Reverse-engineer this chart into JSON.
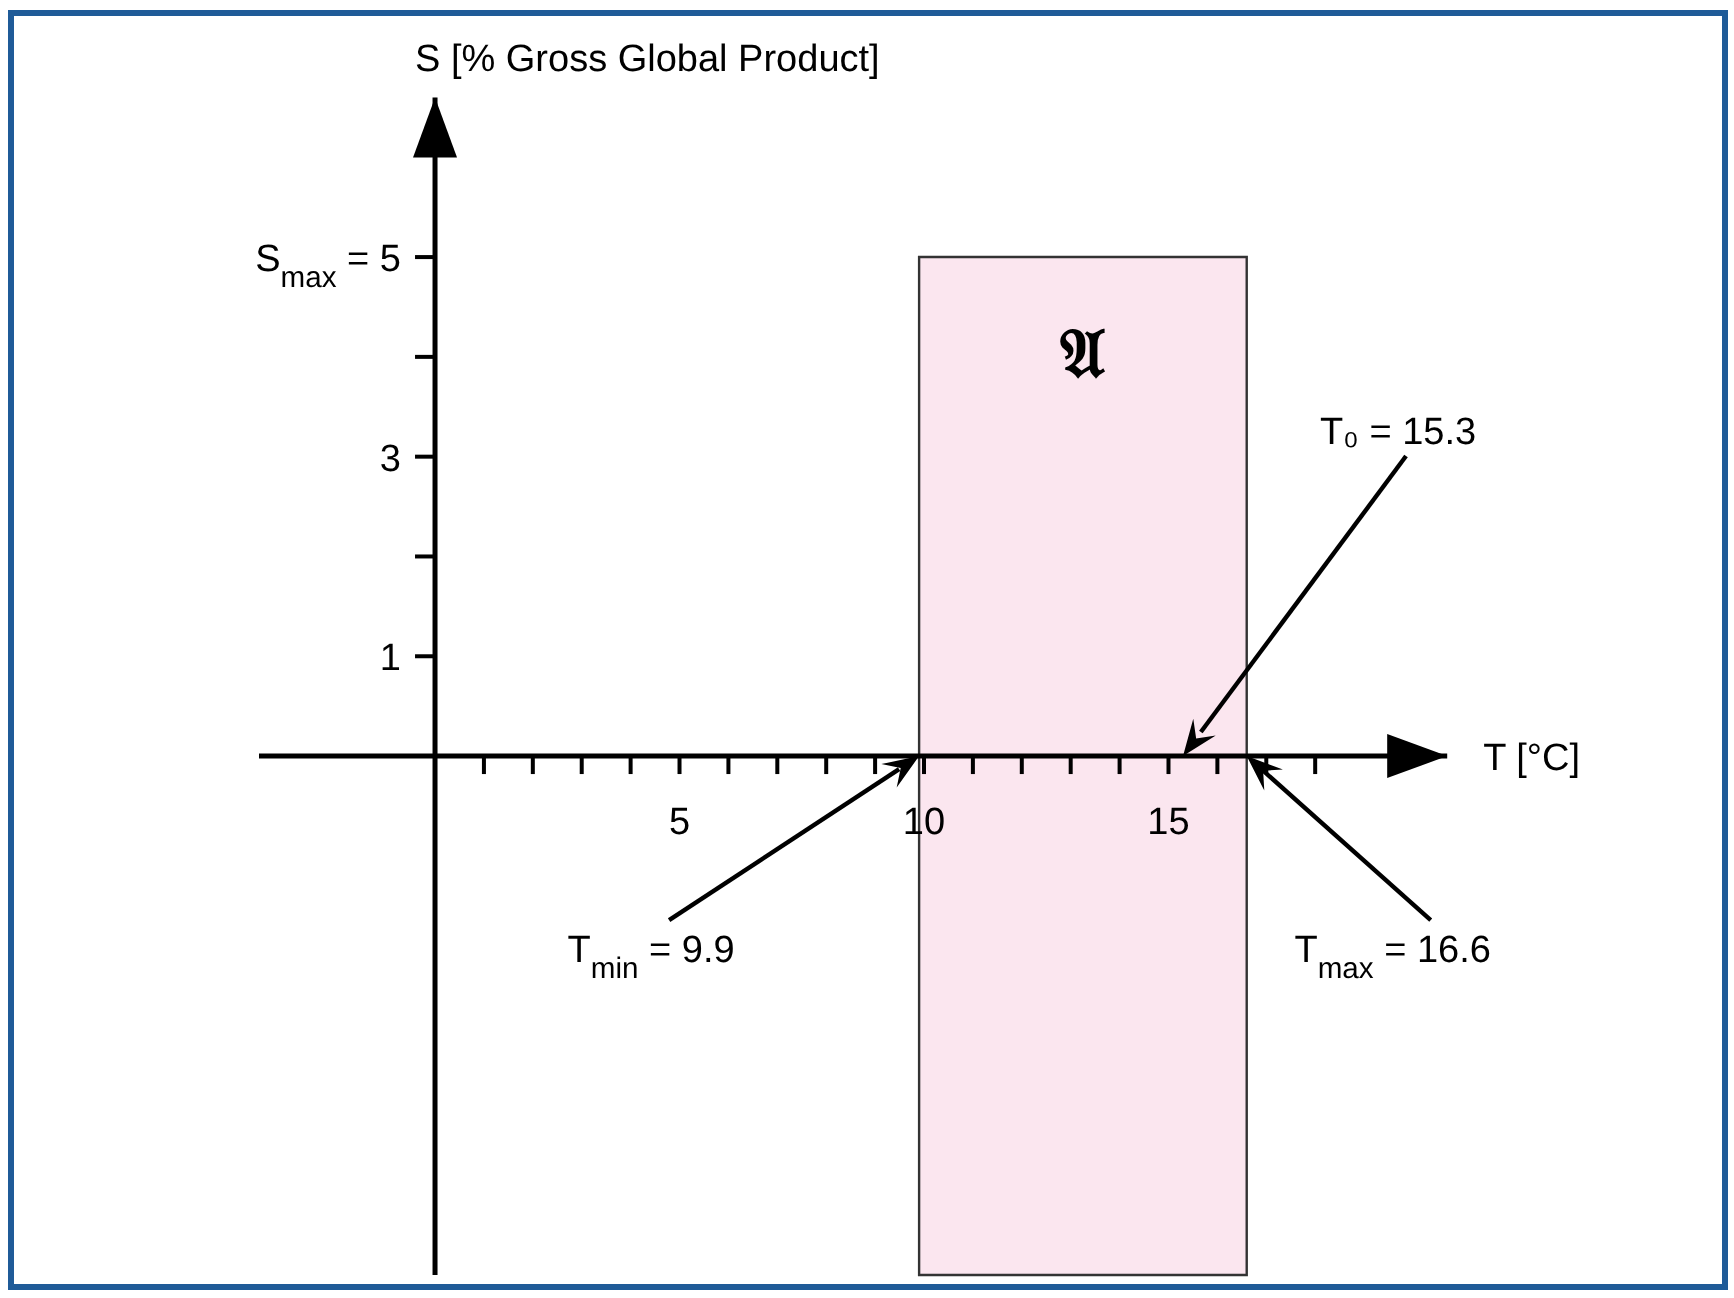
{
  "chart_data": {
    "type": "line",
    "xlabel": "T [°C]",
    "ylabel": "S [% Gross Global Product]",
    "xlim": [
      -3.6,
      20.7
    ],
    "ylim": [
      -5.2,
      6.6
    ],
    "xticks": [
      {
        "value": 1,
        "label": null
      },
      {
        "value": 2,
        "label": null
      },
      {
        "value": 3,
        "label": null
      },
      {
        "value": 4,
        "label": null
      },
      5,
      {
        "value": 6,
        "label": null
      },
      {
        "value": 7,
        "label": null
      },
      {
        "value": 8,
        "label": null
      },
      {
        "value": 9,
        "label": null
      },
      10,
      {
        "value": 11,
        "label": null
      },
      {
        "value": 12,
        "label": null
      },
      {
        "value": 13,
        "label": null
      },
      {
        "value": 14,
        "label": null
      },
      15,
      {
        "value": 16,
        "label": null
      },
      {
        "value": 17,
        "label": null
      },
      {
        "value": 18,
        "label": null
      }
    ],
    "yticks": [
      1,
      {
        "value": 2,
        "label": null
      },
      3,
      {
        "value": 4,
        "label": null
      },
      {
        "value": 5,
        "label": "S$_{max}$ = 5"
      }
    ],
    "bands": [
      {
        "axis": "x",
        "from": 9.9,
        "to": 16.6,
        "label": "𝔄",
        "color": "#fbe6ef"
      }
    ],
    "annotations": [
      "T$_{min}$ = 9.9",
      "T₀ = 15.3",
      "T$_{max}$ = 16.6"
    ]
  }
}
